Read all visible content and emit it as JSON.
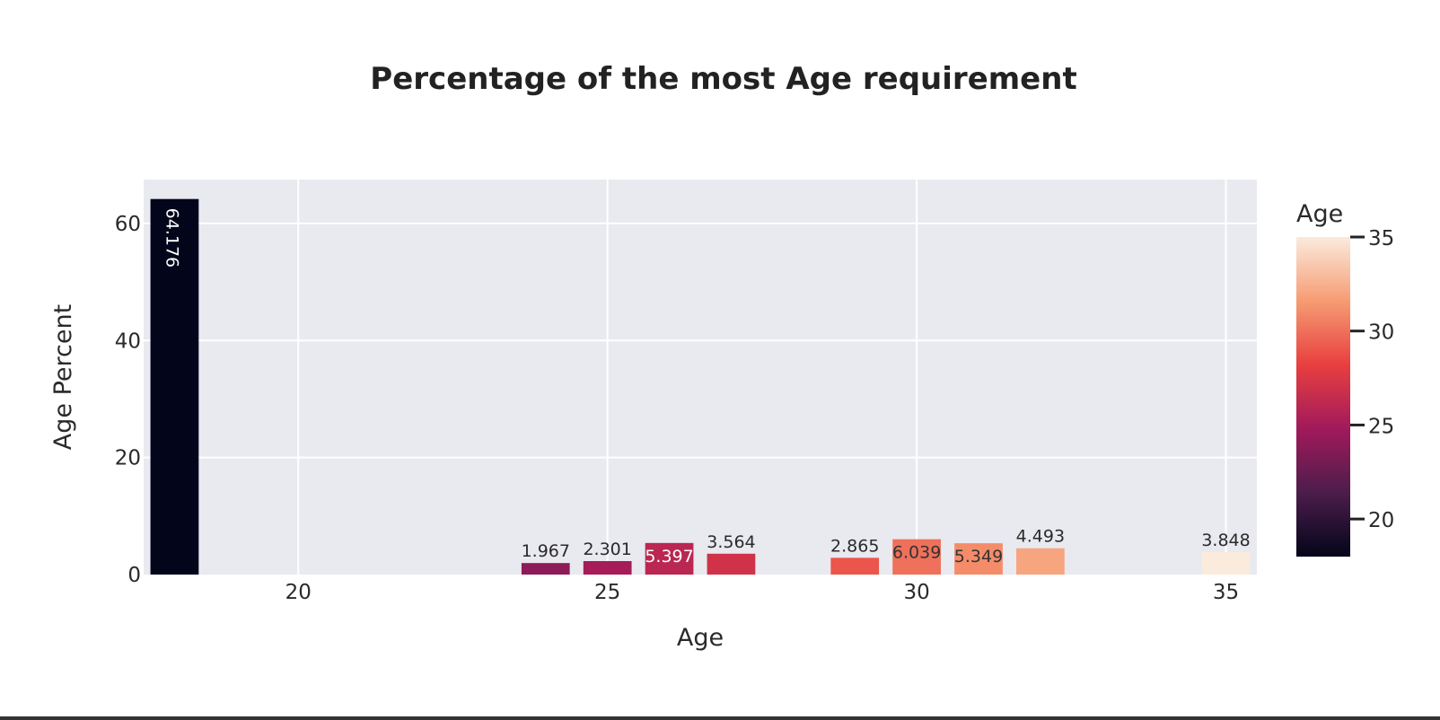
{
  "chart_data": {
    "type": "bar",
    "title": "Percentage of the most Age requirement",
    "xlabel": "Age",
    "ylabel": "Age Percent",
    "x_ticks": [
      20,
      25,
      30,
      35
    ],
    "y_ticks": [
      0,
      20,
      40,
      60
    ],
    "xlim": [
      17.5,
      35.5
    ],
    "ylim": [
      0,
      67.5
    ],
    "grid": true,
    "bars": [
      {
        "x": 18,
        "value": 64.176,
        "label": "64.176",
        "label_pos": "inside-rotated"
      },
      {
        "x": 24,
        "value": 1.967,
        "label": "1.967",
        "label_pos": "outside"
      },
      {
        "x": 25,
        "value": 2.301,
        "label": "2.301",
        "label_pos": "outside"
      },
      {
        "x": 26,
        "value": 5.397,
        "label": "5.397",
        "label_pos": "inside"
      },
      {
        "x": 27,
        "value": 3.564,
        "label": "3.564",
        "label_pos": "outside"
      },
      {
        "x": 29,
        "value": 2.865,
        "label": "2.865",
        "label_pos": "outside"
      },
      {
        "x": 30,
        "value": 6.039,
        "label": "6.039",
        "label_pos": "inside"
      },
      {
        "x": 31,
        "value": 5.349,
        "label": "5.349",
        "label_pos": "inside"
      },
      {
        "x": 32,
        "value": 4.493,
        "label": "4.493",
        "label_pos": "outside"
      },
      {
        "x": 35,
        "value": 3.848,
        "label": "3.848",
        "label_pos": "outside"
      }
    ],
    "colorbar": {
      "title": "Age",
      "range": [
        18,
        35
      ],
      "ticks": [
        20,
        25,
        30,
        35
      ],
      "colorscale": [
        "#03051a",
        "#4c1d4b",
        "#a11a5b",
        "#e83f3f",
        "#f69c73",
        "#faebdd"
      ]
    },
    "colors": {
      "plot_background": "#e9e9f0",
      "grid": "#ffffff"
    }
  }
}
